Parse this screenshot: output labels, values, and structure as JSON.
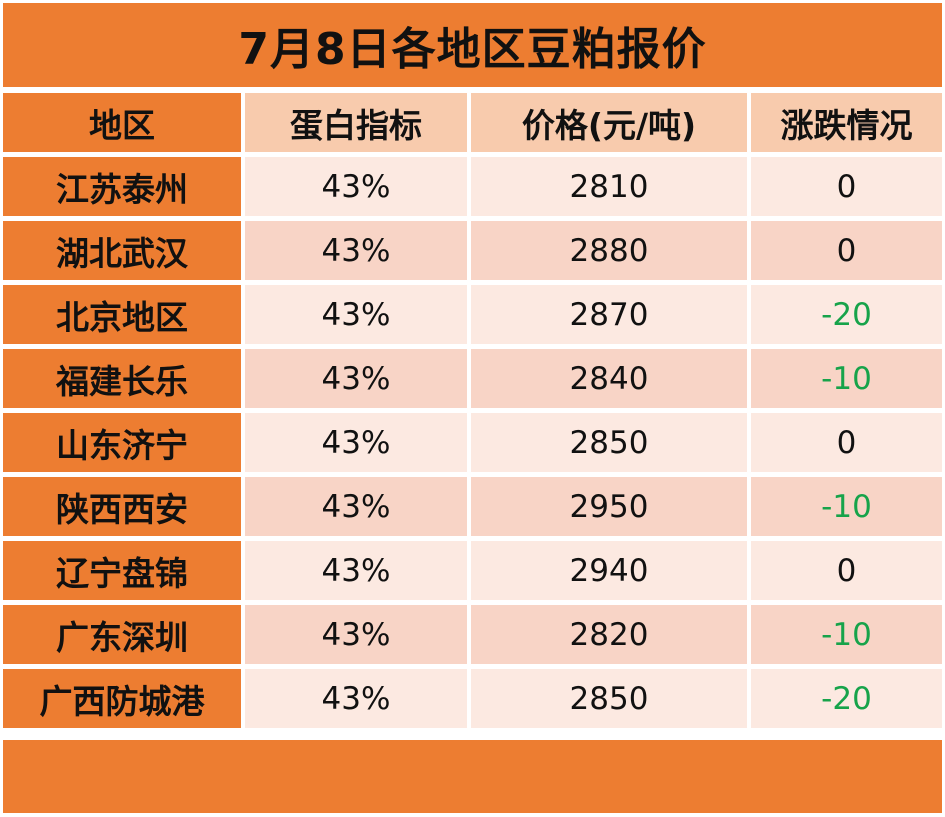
{
  "title": "7月8日各地区豆粕报价",
  "headers": [
    "地区",
    "蛋白指标",
    "价格(元/吨)",
    "涨跌情况"
  ],
  "rows": [
    {
      "region": "江苏泰州",
      "protein": "43%",
      "price": "2810",
      "change": "0"
    },
    {
      "region": "湖北武汉",
      "protein": "43%",
      "price": "2880",
      "change": "0"
    },
    {
      "region": "北京地区",
      "protein": "43%",
      "price": "2870",
      "change": "-20"
    },
    {
      "region": "福建长乐",
      "protein": "43%",
      "price": "2840",
      "change": "-10"
    },
    {
      "region": "山东济宁",
      "protein": "43%",
      "price": "2850",
      "change": "0"
    },
    {
      "region": "陕西西安",
      "protein": "43%",
      "price": "2950",
      "change": "-10"
    },
    {
      "region": "辽宁盘锦",
      "protein": "43%",
      "price": "2940",
      "change": "0"
    },
    {
      "region": "广东深圳",
      "protein": "43%",
      "price": "2820",
      "change": "-10"
    },
    {
      "region": "广西防城港",
      "protein": "43%",
      "price": "2850",
      "change": "-20"
    }
  ],
  "colors": {
    "accent": "#ed7d31",
    "header_cell": "#f8cbad",
    "row_light": "#fce9e1",
    "row_dark": "#f8d4c6",
    "negative": "#17a34a"
  }
}
